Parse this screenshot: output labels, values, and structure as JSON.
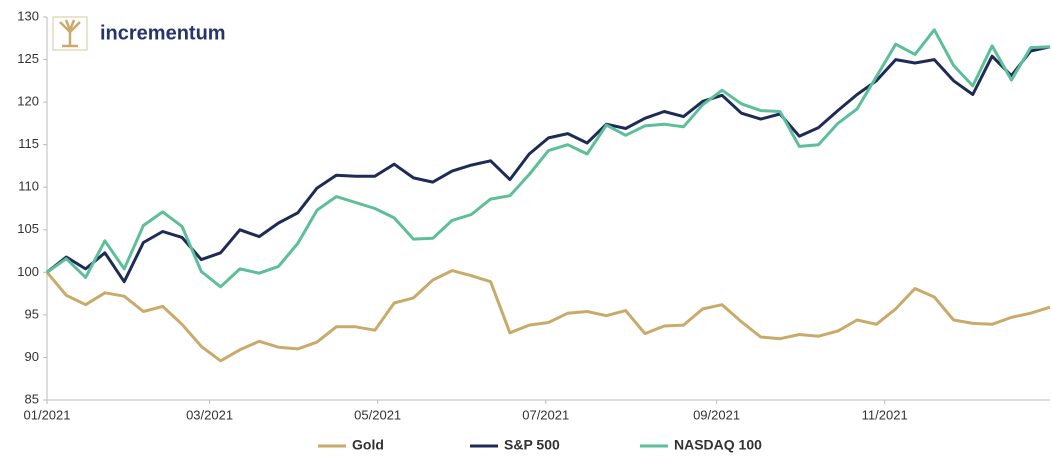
{
  "brand": "incrementum",
  "chart_data": {
    "type": "line",
    "x": [
      0,
      7,
      14,
      21,
      28,
      35,
      42,
      49,
      56,
      63,
      70,
      77,
      84,
      91,
      98,
      105,
      112,
      119,
      126,
      133,
      140,
      147,
      154,
      161,
      168,
      175,
      182,
      189,
      196,
      203,
      210,
      217,
      224,
      231,
      238,
      245,
      252,
      259,
      266,
      273,
      280,
      287,
      294,
      301,
      308,
      315,
      322,
      329,
      336,
      343,
      350,
      357,
      364
    ],
    "xlim": [
      0,
      364
    ],
    "xticks": [
      {
        "value": 0,
        "label": "01/2021"
      },
      {
        "value": 59,
        "label": "03/2021"
      },
      {
        "value": 120,
        "label": "05/2021"
      },
      {
        "value": 181,
        "label": "07/2021"
      },
      {
        "value": 243,
        "label": "09/2021"
      },
      {
        "value": 304,
        "label": "11/2021"
      }
    ],
    "ylim": [
      85,
      130
    ],
    "yticks": [
      85,
      90,
      95,
      100,
      105,
      110,
      115,
      120,
      125,
      130
    ],
    "legend": "bottom",
    "series": [
      {
        "name": "Gold",
        "color": "#c9aa6b",
        "values": [
          100,
          97.3,
          96.2,
          97.6,
          97.2,
          95.4,
          96.0,
          93.9,
          91.3,
          89.6,
          90.9,
          91.9,
          91.2,
          91.0,
          91.8,
          93.6,
          93.6,
          93.2,
          96.4,
          97.0,
          99.1,
          100.2,
          99.6,
          98.9,
          92.9,
          93.8,
          94.1,
          95.2,
          95.4,
          94.9,
          95.5,
          92.8,
          93.7,
          93.8,
          95.7,
          96.2,
          94.2,
          92.4,
          92.2,
          92.7,
          92.5,
          93.1,
          94.4,
          93.9,
          95.7,
          98.1,
          97.1,
          94.4,
          94.0,
          93.9,
          94.7,
          95.2,
          95.9
        ]
      },
      {
        "name": "S&P 500",
        "color": "#1f2b57",
        "values": [
          100,
          101.8,
          100.4,
          102.3,
          98.9,
          103.5,
          104.8,
          104.1,
          101.5,
          102.3,
          105.0,
          104.2,
          105.8,
          107.0,
          109.9,
          111.4,
          111.3,
          111.3,
          112.7,
          111.1,
          110.6,
          111.9,
          112.6,
          113.1,
          110.9,
          113.9,
          115.8,
          116.3,
          115.2,
          117.4,
          116.9,
          118.1,
          118.9,
          118.3,
          120.1,
          120.8,
          118.7,
          118.0,
          118.6,
          116.0,
          117.0,
          119.0,
          120.9,
          122.5,
          125.0,
          124.6,
          125.0,
          122.5,
          120.9,
          125.4,
          123.1,
          126.0,
          126.5
        ]
      },
      {
        "name": "NASDAQ 100",
        "color": "#5cbf99",
        "values": [
          100,
          101.6,
          99.4,
          103.7,
          100.4,
          105.5,
          107.1,
          105.4,
          100.1,
          98.3,
          100.4,
          99.9,
          100.7,
          103.4,
          107.3,
          108.9,
          108.2,
          107.5,
          106.4,
          103.9,
          104.0,
          106.1,
          106.8,
          108.6,
          109.0,
          111.5,
          114.3,
          115.0,
          113.9,
          117.3,
          116.1,
          117.2,
          117.4,
          117.1,
          119.7,
          121.4,
          119.8,
          119.0,
          118.9,
          114.8,
          115.0,
          117.5,
          119.2,
          123.0,
          126.8,
          125.6,
          128.5,
          124.3,
          121.9,
          126.6,
          122.6,
          126.4,
          126.5
        ]
      }
    ]
  }
}
